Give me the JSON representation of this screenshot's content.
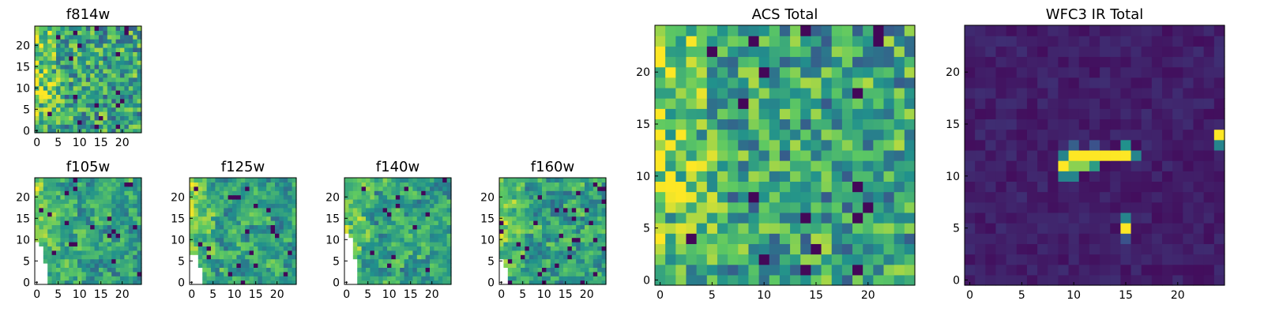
{
  "figure": {
    "colormap": "viridis",
    "colormap_stops": [
      "#440154",
      "#3b528b",
      "#21918c",
      "#5ec962",
      "#fde725"
    ],
    "missing_color": "#ffffff",
    "frame_color": "#000000"
  },
  "chart_data": [
    {
      "type": "heatmap",
      "title": "f814w",
      "grid_size": 25,
      "xlim": [
        -0.5,
        24.5
      ],
      "ylim": [
        -0.5,
        24.5
      ],
      "xticks": [
        0,
        5,
        10,
        15,
        20
      ],
      "yticks": [
        0,
        5,
        10,
        15,
        20
      ],
      "model": {
        "mode": "acs",
        "seed": 11,
        "left_boost": 0.22,
        "noise": 0.3,
        "block": 1
      }
    },
    {
      "type": "heatmap",
      "title": "f105w",
      "grid_size": 25,
      "xlim": [
        -0.5,
        24.5
      ],
      "ylim": [
        -0.5,
        24.5
      ],
      "xticks": [
        0,
        5,
        10,
        15,
        20
      ],
      "yticks": [
        0,
        5,
        10,
        15,
        20
      ],
      "model": {
        "mode": "ir_band",
        "seed": 23,
        "left_boost": 0.2,
        "noise": 0.26,
        "block": 2,
        "missing_width": 3,
        "missing_height": 10
      }
    },
    {
      "type": "heatmap",
      "title": "f125w",
      "grid_size": 25,
      "xlim": [
        -0.5,
        24.5
      ],
      "ylim": [
        -0.5,
        24.5
      ],
      "xticks": [
        0,
        5,
        10,
        15,
        20
      ],
      "yticks": [
        0,
        5,
        10,
        15,
        20
      ],
      "model": {
        "mode": "ir_band",
        "seed": 37,
        "left_boost": 0.2,
        "noise": 0.26,
        "block": 2,
        "missing_width": 3,
        "missing_height": 7
      }
    },
    {
      "type": "heatmap",
      "title": "f140w",
      "grid_size": 25,
      "xlim": [
        -0.5,
        24.5
      ],
      "ylim": [
        -0.5,
        24.5
      ],
      "xticks": [
        0,
        5,
        10,
        15,
        20
      ],
      "yticks": [
        0,
        5,
        10,
        15,
        20
      ],
      "model": {
        "mode": "ir_band",
        "seed": 51,
        "left_boost": 0.18,
        "noise": 0.26,
        "block": 2,
        "missing_width": 3,
        "missing_height": 12
      }
    },
    {
      "type": "heatmap",
      "title": "f160w",
      "grid_size": 25,
      "xlim": [
        -0.5,
        24.5
      ],
      "ylim": [
        -0.5,
        24.5
      ],
      "xticks": [
        0,
        5,
        10,
        15,
        20
      ],
      "yticks": [
        0,
        5,
        10,
        15,
        20
      ],
      "model": {
        "mode": "ir_band",
        "seed": 67,
        "left_boost": 0.18,
        "noise": 0.26,
        "block": 2,
        "missing_width": 2,
        "missing_height": 6
      }
    },
    {
      "type": "heatmap",
      "title": "ACS Total",
      "grid_size": 25,
      "xlim": [
        -0.5,
        24.5
      ],
      "ylim": [
        -0.5,
        24.5
      ],
      "xticks": [
        0,
        5,
        10,
        15,
        20
      ],
      "yticks": [
        0,
        5,
        10,
        15,
        20
      ],
      "model": {
        "mode": "acs",
        "seed": 11,
        "left_boost": 0.22,
        "noise": 0.3,
        "block": 1
      }
    },
    {
      "type": "heatmap",
      "title": "WFC3 IR Total",
      "grid_size": 25,
      "xlim": [
        -0.5,
        24.5
      ],
      "ylim": [
        -0.5,
        24.5
      ],
      "xticks": [
        0,
        5,
        10,
        15,
        20
      ],
      "yticks": [
        0,
        5,
        10,
        15,
        20
      ],
      "model": {
        "mode": "ir_total",
        "seed": 83,
        "background": 0.04,
        "noise": 0.1,
        "bright_pixels": [
          {
            "x": 10,
            "y": 12,
            "v": 1.0
          },
          {
            "x": 11,
            "y": 12,
            "v": 1.0
          },
          {
            "x": 12,
            "y": 12,
            "v": 1.0
          },
          {
            "x": 13,
            "y": 12,
            "v": 1.0
          },
          {
            "x": 14,
            "y": 12,
            "v": 1.0
          },
          {
            "x": 15,
            "y": 12,
            "v": 1.0
          },
          {
            "x": 9,
            "y": 11,
            "v": 1.0
          },
          {
            "x": 10,
            "y": 11,
            "v": 0.82
          },
          {
            "x": 11,
            "y": 11,
            "v": 0.82
          },
          {
            "x": 12,
            "y": 11,
            "v": 0.55
          },
          {
            "x": 9,
            "y": 12,
            "v": 0.45
          },
          {
            "x": 16,
            "y": 12,
            "v": 0.45
          },
          {
            "x": 9,
            "y": 10,
            "v": 0.45
          },
          {
            "x": 10,
            "y": 10,
            "v": 0.45
          },
          {
            "x": 10,
            "y": 13,
            "v": 0.3
          },
          {
            "x": 15,
            "y": 13,
            "v": 0.5
          },
          {
            "x": 12,
            "y": 13,
            "v": 0.25
          },
          {
            "x": 15,
            "y": 5,
            "v": 1.0
          },
          {
            "x": 15,
            "y": 6,
            "v": 0.45
          },
          {
            "x": 15,
            "y": 4,
            "v": 0.25
          },
          {
            "x": 24,
            "y": 14,
            "v": 1.0
          },
          {
            "x": 24,
            "y": 13,
            "v": 0.45
          }
        ]
      }
    }
  ]
}
